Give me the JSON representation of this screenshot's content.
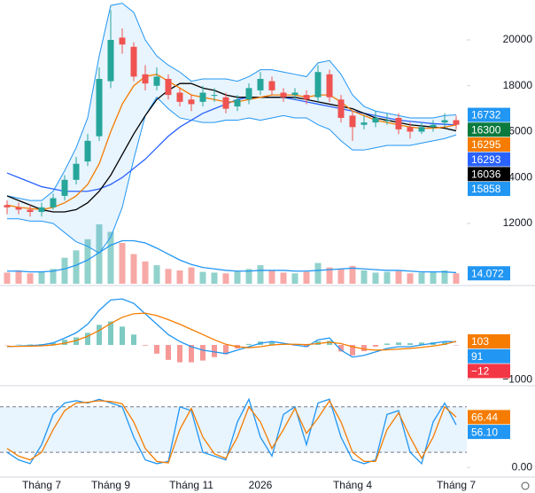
{
  "chart_data": [
    {
      "type": "candlestick",
      "categories": [
        null,
        null,
        null,
        "Tháng 7",
        null,
        null,
        null,
        null,
        null,
        "Tháng 9",
        null,
        null,
        null,
        null,
        null,
        null,
        "Tháng 11",
        null,
        null,
        null,
        null,
        null,
        "2026",
        null,
        null,
        null,
        null,
        null,
        null,
        null,
        "Tháng 4",
        null,
        null,
        null,
        null,
        null,
        null,
        null,
        null,
        "Tháng 7"
      ],
      "open": [
        12800,
        12700,
        12600,
        12500,
        12700,
        13200,
        13900,
        14700,
        15800,
        18200,
        20100,
        19700,
        18500,
        18000,
        18300,
        17700,
        17400,
        17300,
        17600,
        17500,
        17100,
        17400,
        17800,
        18200,
        17700,
        17600,
        17600,
        17500,
        18500,
        17400,
        16700,
        16300,
        16400,
        16500,
        16600,
        16200,
        16000,
        16200,
        16400,
        16500
      ],
      "high": [
        13000,
        12900,
        12800,
        12900,
        13300,
        14100,
        14900,
        15900,
        18800,
        21300,
        20500,
        19900,
        18900,
        18800,
        18500,
        17900,
        17600,
        18000,
        17900,
        17700,
        17600,
        18100,
        18600,
        18400,
        17900,
        17900,
        17800,
        18900,
        18700,
        17600,
        16900,
        16700,
        16900,
        16800,
        16800,
        16400,
        16400,
        16500,
        16800,
        16700
      ],
      "low": [
        12400,
        12400,
        12300,
        12300,
        12600,
        13000,
        13700,
        14500,
        15600,
        17900,
        19400,
        18200,
        17800,
        17800,
        17400,
        17100,
        16900,
        17100,
        17300,
        16800,
        16900,
        17200,
        17600,
        17600,
        17300,
        17400,
        17200,
        17300,
        17300,
        16400,
        15600,
        16100,
        16200,
        16300,
        15900,
        15700,
        15900,
        16000,
        16200,
        16100
      ],
      "close": [
        12700,
        12600,
        12500,
        12700,
        13100,
        13900,
        14600,
        15600,
        18300,
        20000,
        19800,
        18400,
        18100,
        18400,
        17600,
        17300,
        17200,
        17700,
        17600,
        17000,
        17400,
        17900,
        18300,
        17800,
        17500,
        17700,
        17400,
        18600,
        17500,
        16600,
        16200,
        16400,
        16600,
        16500,
        16100,
        16000,
        16200,
        16300,
        16500,
        16300
      ],
      "up_color": "#26a69a",
      "down_color": "#ef5350",
      "band_color": "#2196f3",
      "bb_upper": [
        13200,
        13100,
        13000,
        13000,
        13400,
        14300,
        15300,
        16600,
        19300,
        21500,
        21600,
        21200,
        20000,
        19300,
        18900,
        18600,
        18200,
        18300,
        18300,
        18300,
        18200,
        18400,
        18700,
        18700,
        18600,
        18500,
        18400,
        19000,
        19100,
        18500,
        17600,
        17100,
        16900,
        16800,
        16700,
        16600,
        16600,
        16600,
        16700,
        16732
      ],
      "bb_lower": [
        12200,
        12200,
        12100,
        12100,
        12000,
        11600,
        11200,
        11000,
        10700,
        11400,
        12700,
        14800,
        16700,
        17500,
        17000,
        16600,
        16500,
        16400,
        16400,
        16500,
        16500,
        16600,
        16500,
        16600,
        16700,
        16600,
        16600,
        16300,
        16100,
        15600,
        15200,
        15200,
        15300,
        15400,
        15400,
        15400,
        15500,
        15600,
        15700,
        15858
      ],
      "series": [
        {
          "color": "#2962ff",
          "values": [
            14200,
            14000,
            13800,
            13600,
            13500,
            13400,
            13400,
            13400,
            13500,
            13700,
            14000,
            14400,
            14800,
            15300,
            15800,
            16200,
            16500,
            16800,
            17000,
            17200,
            17400,
            17500,
            17500,
            17500,
            17500,
            17400,
            17300,
            17200,
            17100,
            17000,
            16900,
            16800,
            16700,
            16600,
            16500,
            16450,
            16400,
            16350,
            16320,
            16293
          ]
        },
        {
          "color": "#000000",
          "values": [
            13200,
            13000,
            12800,
            12600,
            12500,
            12500,
            12600,
            12900,
            13400,
            14100,
            15000,
            15900,
            16700,
            17400,
            17800,
            18100,
            18100,
            17900,
            17800,
            17600,
            17500,
            17500,
            17500,
            17500,
            17500,
            17500,
            17400,
            17300,
            17200,
            17100,
            17000,
            16800,
            16600,
            16500,
            16400,
            16300,
            16250,
            16200,
            16150,
            16036
          ]
        },
        {
          "color": "#f57c00",
          "values": [
            12800,
            12700,
            12650,
            12600,
            12700,
            12900,
            13200,
            13700,
            14600,
            16000,
            17200,
            18000,
            18400,
            18500,
            18200,
            17900,
            17600,
            17500,
            17400,
            17300,
            17300,
            17400,
            17500,
            17600,
            17600,
            17600,
            17500,
            17600,
            17600,
            17300,
            16900,
            16700,
            16500,
            16400,
            16300,
            16200,
            16150,
            16150,
            16200,
            16295
          ]
        }
      ],
      "ylim": [
        9370,
        21740
      ],
      "yticks": [
        12000,
        14000,
        16000,
        18000,
        20000
      ],
      "badges": [
        {
          "value": 16732,
          "color": "#2196f3"
        },
        {
          "value": 16300,
          "color": "#0b7a3e"
        },
        {
          "value": 16295,
          "color": "#f57c00"
        },
        {
          "value": 16293,
          "color": "#2962ff"
        },
        {
          "value": 16036,
          "color": "#000000"
        },
        {
          "value": 15858,
          "color": "#2196f3"
        }
      ]
    },
    {
      "type": "bar",
      "values": [
        15,
        18,
        14,
        16,
        20,
        35,
        45,
        60,
        80,
        70,
        55,
        40,
        30,
        25,
        20,
        18,
        22,
        16,
        15,
        14,
        17,
        20,
        25,
        18,
        15,
        14,
        16,
        28,
        22,
        20,
        24,
        18,
        15,
        16,
        17,
        14,
        15,
        16,
        18,
        14.072
      ],
      "series": [
        {
          "color": "#2196f3",
          "values": [
            17,
            17,
            16,
            16,
            17,
            20,
            25,
            32,
            42,
            52,
            58,
            58,
            55,
            48,
            40,
            32,
            26,
            22,
            20,
            18,
            17,
            17,
            18,
            18,
            18,
            17,
            17,
            18,
            19,
            20,
            21,
            20,
            19,
            18,
            18,
            17,
            16,
            16,
            16,
            15
          ]
        }
      ],
      "ylim": [
        0,
        110
      ],
      "badges": [
        {
          "value": 14.072,
          "color": "#2196f3"
        }
      ]
    },
    {
      "type": "macd",
      "histogram": [
        -10,
        10,
        15,
        25,
        60,
        150,
        220,
        350,
        580,
        680,
        530,
        300,
        -20,
        -250,
        -430,
        -500,
        -500,
        -450,
        -350,
        -270,
        -100,
        30,
        100,
        100,
        30,
        -20,
        -60,
        110,
        120,
        -190,
        -300,
        -180,
        -50,
        40,
        70,
        50,
        70,
        80,
        80,
        -12
      ],
      "up_color": "#26a69a",
      "down_color": "#ef5350",
      "series": [
        {
          "color": "#2196f3",
          "values": [
            -50,
            -30,
            -20,
            0,
            60,
            200,
            350,
            600,
            1000,
            1300,
            1330,
            1200,
            900,
            600,
            300,
            100,
            -50,
            -150,
            -200,
            -250,
            -150,
            -50,
            50,
            100,
            50,
            0,
            -50,
            150,
            200,
            -150,
            -350,
            -300,
            -200,
            -100,
            -50,
            -50,
            0,
            50,
            100,
            91
          ]
        },
        {
          "color": "#f57c00",
          "values": [
            -40,
            -40,
            -35,
            -25,
            0,
            50,
            130,
            250,
            420,
            620,
            800,
            900,
            920,
            850,
            730,
            600,
            450,
            300,
            150,
            20,
            -50,
            -80,
            -50,
            0,
            20,
            20,
            10,
            40,
            80,
            40,
            -50,
            -120,
            -150,
            -140,
            -120,
            -100,
            -70,
            -30,
            20,
            103
          ]
        }
      ],
      "ylim": [
        -1100,
        1640
      ],
      "yticks": [
        {
          "value": -1000,
          "label": "−1000"
        }
      ],
      "badges": [
        {
          "value": 103,
          "color": "#f57c00"
        },
        {
          "value": 91,
          "color": "#2196f3"
        },
        {
          "value": -12,
          "color": "#f23645",
          "label": "−12"
        }
      ]
    },
    {
      "type": "stochastic",
      "bands": [
        20,
        80
      ],
      "band_color": "#2196f3",
      "series": [
        {
          "color": "#2196f3",
          "values": [
            20,
            10,
            5,
            30,
            70,
            85,
            88,
            85,
            90,
            85,
            80,
            40,
            10,
            5,
            8,
            80,
            75,
            20,
            15,
            10,
            60,
            90,
            40,
            15,
            70,
            80,
            30,
            85,
            90,
            40,
            10,
            5,
            10,
            70,
            75,
            20,
            5,
            60,
            85,
            56.1
          ]
        },
        {
          "color": "#f57c00",
          "values": [
            25,
            15,
            10,
            20,
            50,
            75,
            85,
            86,
            88,
            87,
            84,
            60,
            25,
            8,
            6,
            50,
            78,
            40,
            18,
            12,
            40,
            80,
            60,
            25,
            50,
            78,
            45,
            65,
            88,
            60,
            20,
            8,
            8,
            50,
            72,
            40,
            12,
            40,
            80,
            66.44
          ]
        }
      ],
      "ylim": [
        -15,
        102
      ],
      "yticks": [
        {
          "value": 0,
          "label": "0.00"
        }
      ],
      "badges": [
        {
          "value": 66.44,
          "color": "#f57c00"
        },
        {
          "value": 56.1,
          "color": "#2196f3",
          "label": "56.10"
        }
      ]
    }
  ]
}
